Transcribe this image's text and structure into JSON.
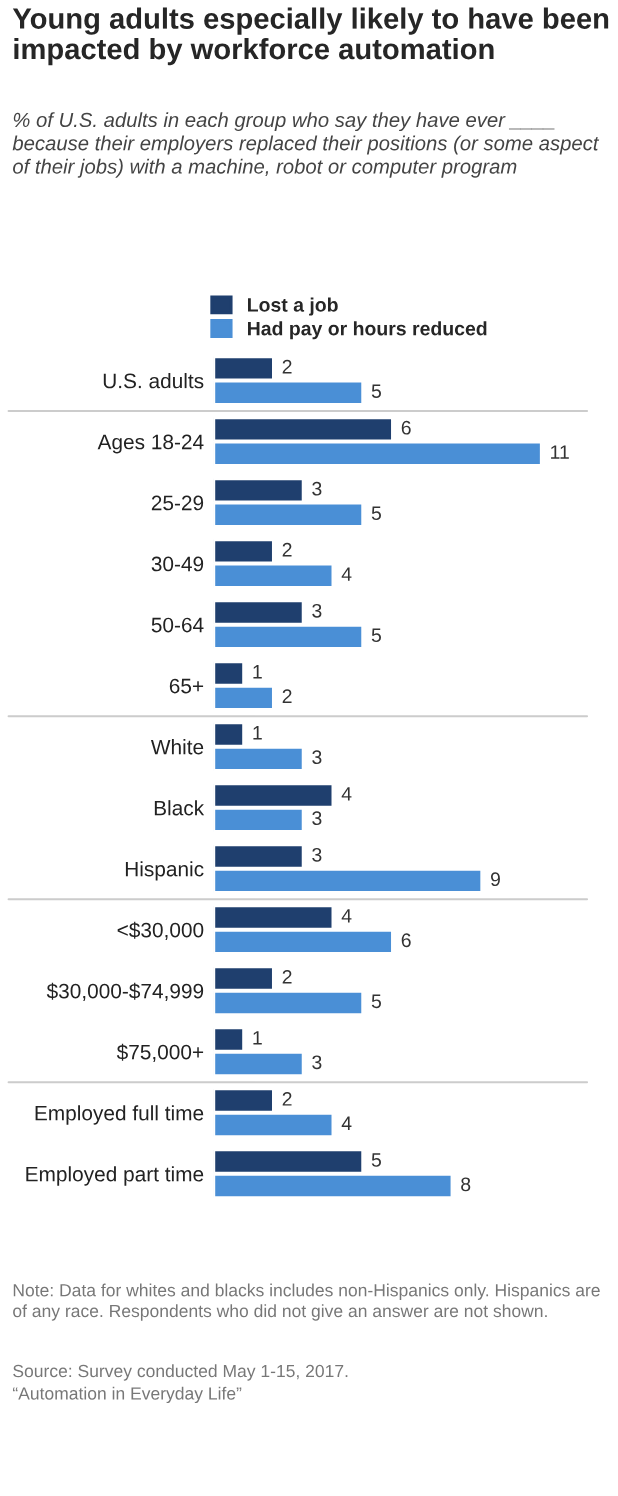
{
  "chart_data": {
    "type": "bar",
    "orientation": "horizontal",
    "title": "Young adults especially likely to have been impacted by workforce automation",
    "subtitle": "% of U.S. adults in each group who say they have ever ____ because their employers replaced their positions (or some aspect of their jobs) with a machine, robot or computer program",
    "categories": [
      "U.S. adults",
      "Ages 18-24",
      "25-29",
      "30-49",
      "50-64",
      "65+",
      "White",
      "Black",
      "Hispanic",
      "<$30,000",
      "$30,000-$74,999",
      "$75,000+",
      "Employed full time",
      "Employed part time"
    ],
    "series": [
      {
        "name": "Lost a job",
        "color": "#1f3f6e",
        "values": [
          2,
          6,
          3,
          2,
          3,
          1,
          1,
          4,
          3,
          4,
          2,
          1,
          2,
          5
        ]
      },
      {
        "name": "Had pay or hours reduced",
        "color": "#4a8fd6",
        "values": [
          5,
          11,
          5,
          4,
          5,
          2,
          3,
          3,
          9,
          6,
          5,
          3,
          4,
          8
        ]
      }
    ],
    "data_labels": true,
    "legend": "top",
    "grid": false,
    "tick_labels": "y",
    "annotations": [
      "Note: Data for whites and blacks includes non-Hispanics only. Hispanics are of any race. Respondents who did not give an answer are not shown.",
      "Source: Survey conducted May 1-15, 2017.",
      "“Automation in Everyday Life”"
    ]
  }
}
